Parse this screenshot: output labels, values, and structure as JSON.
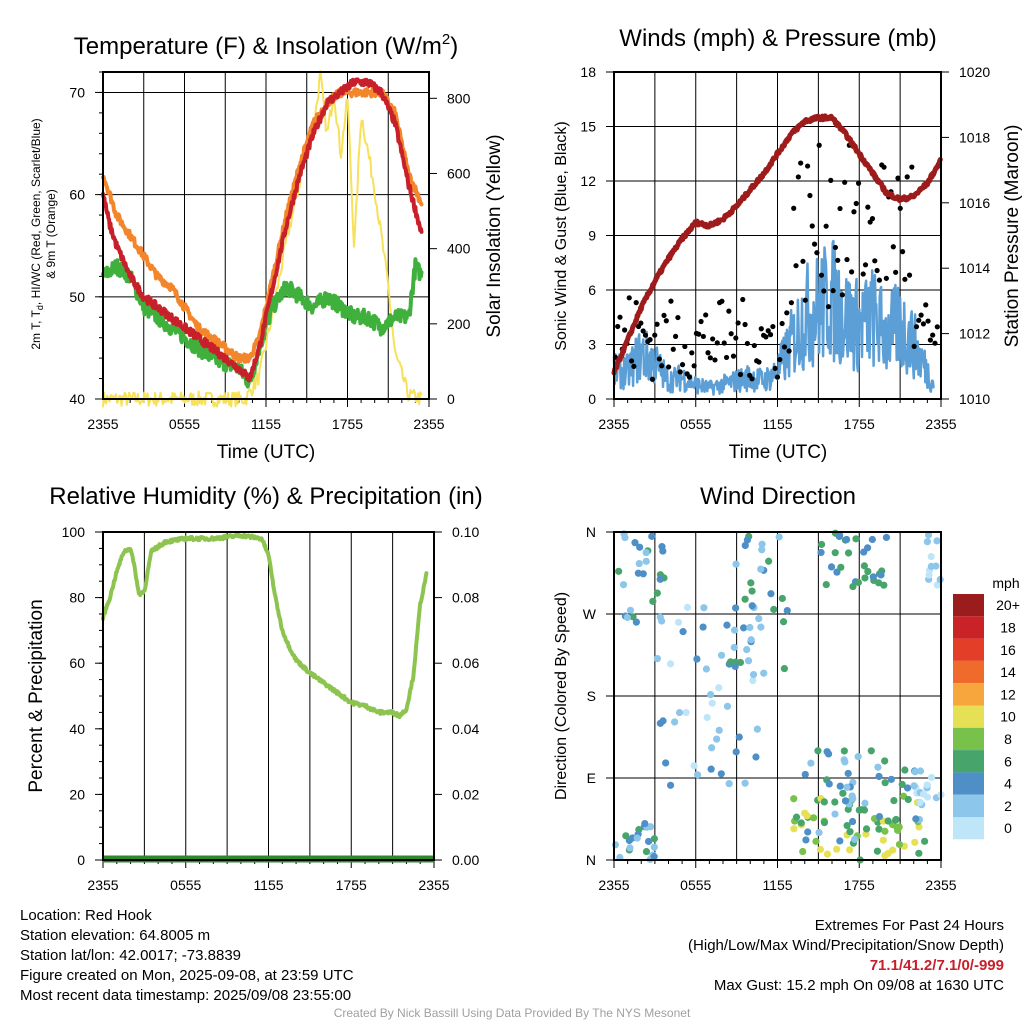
{
  "chart_data": [
    {
      "id": "temp",
      "type": "line",
      "title": "Temperature (F) & Insolation (W/m",
      "title_sup": "2",
      "title_close": ")",
      "xlabel": "Time (UTC)",
      "ylabel_line1": "2m T, T",
      "ylabel_sub": "d",
      "ylabel_line1_rest": ", HI/WC (Red, Green, Scarlet/Blue)",
      "ylabel_line2": "& 9m T (Orange)",
      "ylabel_right": "Solar Insolation (Yellow)",
      "x_ticks": [
        "2355",
        "0555",
        "1155",
        "1755",
        "2355"
      ],
      "xlim": [
        0,
        24
      ],
      "ylim_left": [
        40,
        72
      ],
      "y_ticks_left": [
        "40",
        "50",
        "60",
        "70"
      ],
      "ylim_right": [
        0,
        870
      ],
      "y_ticks_right": [
        "0",
        "200",
        "400",
        "600",
        "800"
      ],
      "grid": true,
      "series": [
        {
          "color": "#f7e15a",
          "axis": "right",
          "x": [
            0,
            10.5,
            11.5,
            12.5,
            13.5,
            14.5,
            15.5,
            16.0,
            16.5,
            17.0,
            17.5,
            18.0,
            18.5,
            19.0,
            20.0,
            21.0,
            21.5,
            22.5,
            23.5
          ],
          "y": [
            0,
            0,
            60,
            230,
            420,
            580,
            720,
            860,
            700,
            820,
            650,
            800,
            400,
            760,
            560,
            300,
            120,
            10,
            0
          ]
        },
        {
          "color": "#f3852b",
          "axis": "left",
          "x": [
            0,
            0.5,
            1,
            2,
            3,
            4,
            5,
            6,
            7,
            8,
            9,
            10,
            10.8,
            11.5,
            12.5,
            13.5,
            14.5,
            15.5,
            16.5,
            17.5,
            18.5,
            19.5,
            20.5,
            21.5,
            22.5,
            23.5
          ],
          "y": [
            62,
            60,
            58,
            56,
            54,
            52,
            51,
            49,
            47,
            46,
            45,
            44,
            44,
            46,
            52,
            58,
            63,
            67,
            69,
            70,
            70,
            70,
            70,
            68,
            62,
            59
          ]
        },
        {
          "color": "#c8202a",
          "axis": "left",
          "x": [
            0,
            0.5,
            1,
            2,
            3,
            4,
            5,
            6,
            7,
            8,
            9,
            10,
            10.8,
            11.5,
            12.5,
            13.5,
            14.5,
            15.5,
            16.5,
            17.5,
            18.5,
            19.5,
            20.5,
            21.5,
            22.5,
            23.5
          ],
          "y": [
            60,
            57,
            55,
            52,
            50,
            49,
            48,
            47,
            46,
            45,
            44,
            43,
            42,
            45,
            51,
            57,
            62,
            66,
            69,
            70,
            71,
            71,
            70,
            67,
            61,
            56
          ]
        },
        {
          "color": "#3fb03b",
          "axis": "left",
          "x": [
            0,
            1,
            2,
            3,
            4,
            5,
            6,
            7,
            8,
            9,
            10,
            10.8,
            11.5,
            12.5,
            13.5,
            14.5,
            15.5,
            16.5,
            17.5,
            18.5,
            19.5,
            20.5,
            21.5,
            22.5,
            23.0,
            23.5
          ],
          "y": [
            52,
            53,
            52,
            49,
            48,
            47,
            46,
            45,
            44,
            43.5,
            43,
            41.5,
            45,
            49,
            51,
            50,
            49,
            50,
            49,
            48,
            48,
            47,
            48,
            48,
            53,
            52
          ]
        }
      ]
    },
    {
      "id": "wind",
      "type": "line",
      "title": "Winds (mph) & Pressure (mb)",
      "xlabel": "Time (UTC)",
      "ylabel_left": "Sonic Wind & Gust (Blue, Black)",
      "ylabel_right": "Station Pressure (Maroon)",
      "x_ticks": [
        "2355",
        "0555",
        "1155",
        "1755",
        "2355"
      ],
      "xlim": [
        0,
        24
      ],
      "ylim_left": [
        0,
        18
      ],
      "y_ticks_left": [
        "0",
        "3",
        "6",
        "9",
        "12",
        "15",
        "18"
      ],
      "ylim_right": [
        1010,
        1020
      ],
      "y_ticks_right": [
        "1010",
        "1012",
        "1014",
        "1016",
        "1018",
        "1020"
      ],
      "grid": true,
      "series": [
        {
          "color": "#5b9fd6",
          "axis": "left",
          "x": [
            0,
            1,
            2,
            3,
            4,
            5,
            6,
            7,
            8,
            9,
            10,
            11,
            12,
            13,
            14,
            15,
            16,
            17,
            18,
            19,
            20,
            21,
            22,
            23,
            23.5
          ],
          "y": [
            1.5,
            1.5,
            2.5,
            2.0,
            1.0,
            1.2,
            0.8,
            0.6,
            0.8,
            1.0,
            1.2,
            1.0,
            1.5,
            3.0,
            4.5,
            5.0,
            5.5,
            4.5,
            4.0,
            4.5,
            3.5,
            4.0,
            3.0,
            1.5,
            0.8
          ]
        },
        {
          "color": "#9e1b1b",
          "axis": "right",
          "x": [
            0,
            1,
            2,
            3,
            4,
            5,
            6,
            7,
            8,
            9,
            10,
            11,
            12,
            13,
            14,
            15,
            16,
            17,
            18,
            19,
            20,
            21,
            22,
            23,
            24
          ],
          "y": [
            1010.8,
            1011.8,
            1012.8,
            1013.6,
            1014.3,
            1014.9,
            1015.4,
            1015.3,
            1015.5,
            1015.9,
            1016.4,
            1016.9,
            1017.5,
            1018.1,
            1018.5,
            1018.6,
            1018.6,
            1018.1,
            1017.5,
            1016.9,
            1016.3,
            1016.1,
            1016.2,
            1016.6,
            1017.3
          ]
        }
      ],
      "gust_points": {
        "color": "#000000",
        "x_range": [
          0,
          24
        ],
        "low_max": [
          2.5,
          5.5
        ],
        "high_max": [
          4,
          14
        ]
      }
    },
    {
      "id": "rh",
      "type": "line",
      "title": "Relative Humidity (%) & Precipitation (in)",
      "ylabel_left": "Percent & Precipitation",
      "x_ticks": [
        "2355",
        "0555",
        "1155",
        "1755",
        "2355"
      ],
      "xlim": [
        0,
        24
      ],
      "ylim_left": [
        0,
        100
      ],
      "y_ticks_left": [
        "0",
        "20",
        "40",
        "60",
        "80",
        "100"
      ],
      "ylim_right": [
        0,
        0.1
      ],
      "y_ticks_right": [
        "0.00",
        "0.02",
        "0.04",
        "0.06",
        "0.08",
        "0.10"
      ],
      "grid": true,
      "series": [
        {
          "color": "#8dc44f",
          "axis": "left",
          "x": [
            0,
            0.5,
            1,
            1.5,
            2.0,
            2.3,
            2.6,
            3.0,
            3.5,
            4.5,
            6,
            8,
            10,
            11.5,
            12.0,
            12.5,
            13.0,
            13.5,
            14.0,
            15.0,
            16.0,
            17.0,
            18.0,
            19.0,
            20.0,
            21.0,
            21.5,
            22.0,
            22.5,
            23.0,
            23.5
          ],
          "y": [
            74,
            80,
            88,
            94,
            95,
            89,
            81,
            82,
            94,
            97,
            98,
            98,
            99,
            98,
            93,
            80,
            70,
            65,
            61,
            57,
            54,
            51,
            48,
            47,
            45,
            45,
            44,
            46,
            56,
            78,
            88
          ]
        },
        {
          "color": "#2a8a2a",
          "axis": "right",
          "x": [
            0,
            24
          ],
          "y": [
            0,
            0
          ]
        }
      ]
    },
    {
      "id": "dir",
      "type": "scatter",
      "title": "Wind Direction",
      "ylabel_left": "Direction (Colored By Speed)",
      "x_ticks": [
        "2355",
        "0555",
        "1155",
        "1755",
        "2355"
      ],
      "xlim": [
        0,
        24
      ],
      "ylim_left": [
        0,
        360
      ],
      "y_ticks_left": [
        "N",
        "E",
        "S",
        "W",
        "N"
      ],
      "grid": true,
      "legend_title": "mph",
      "legend_labels": [
        "0",
        "2",
        "4",
        "6",
        "8",
        "10",
        "12",
        "14",
        "16",
        "18",
        "20+"
      ],
      "legend_colors": [
        "#bfe6f8",
        "#8cc6ea",
        "#4d8fc6",
        "#47a56b",
        "#78c14a",
        "#e6e055",
        "#f7a63d",
        "#f06a2b",
        "#e33e27",
        "#c92227",
        "#9a1c1c"
      ],
      "clusters": [
        {
          "x": [
            0,
            3
          ],
          "y": [
            0,
            40
          ],
          "speeds": [
            1,
            2,
            3
          ]
        },
        {
          "x": [
            0,
            4
          ],
          "y": [
            260,
            360
          ],
          "speeds": [
            1,
            2,
            3
          ]
        },
        {
          "x": [
            3,
            11
          ],
          "y": [
            80,
            280
          ],
          "speeds": [
            0,
            1,
            2
          ]
        },
        {
          "x": [
            8,
            13
          ],
          "y": [
            200,
            360
          ],
          "speeds": [
            1,
            2,
            3
          ]
        },
        {
          "x": [
            13,
            23
          ],
          "y": [
            0,
            70
          ],
          "speeds": [
            3,
            4,
            5
          ]
        },
        {
          "x": [
            14,
            23
          ],
          "y": [
            20,
            120
          ],
          "speeds": [
            1,
            2,
            3
          ]
        },
        {
          "x": [
            15,
            20
          ],
          "y": [
            300,
            360
          ],
          "speeds": [
            2,
            3
          ]
        },
        {
          "x": [
            22,
            24
          ],
          "y": [
            60,
            100
          ],
          "speeds": [
            0,
            1
          ]
        },
        {
          "x": [
            23,
            24
          ],
          "y": [
            290,
            360
          ],
          "speeds": [
            0,
            1
          ]
        }
      ]
    }
  ],
  "info_left": [
    "Location: Red Hook",
    "Station elevation: 64.8005 m",
    "Station lat/lon: 42.0017; -73.8839",
    "Figure created on Mon, 2025-09-08, at 23:59 UTC",
    "Most recent data timestamp: 2025/09/08 23:55:00"
  ],
  "info_right": {
    "line1": "Extremes For Past 24 Hours",
    "line2": "(High/Low/Max Wind/Precipitation/Snow Depth)",
    "extremes": "71.1/41.2/7.1/0/-999",
    "gust": "Max Gust: 15.2 mph On 09/08 at 1630 UTC"
  },
  "credit": "Created By Nick Bassill Using Data Provided By The NYS Mesonet"
}
